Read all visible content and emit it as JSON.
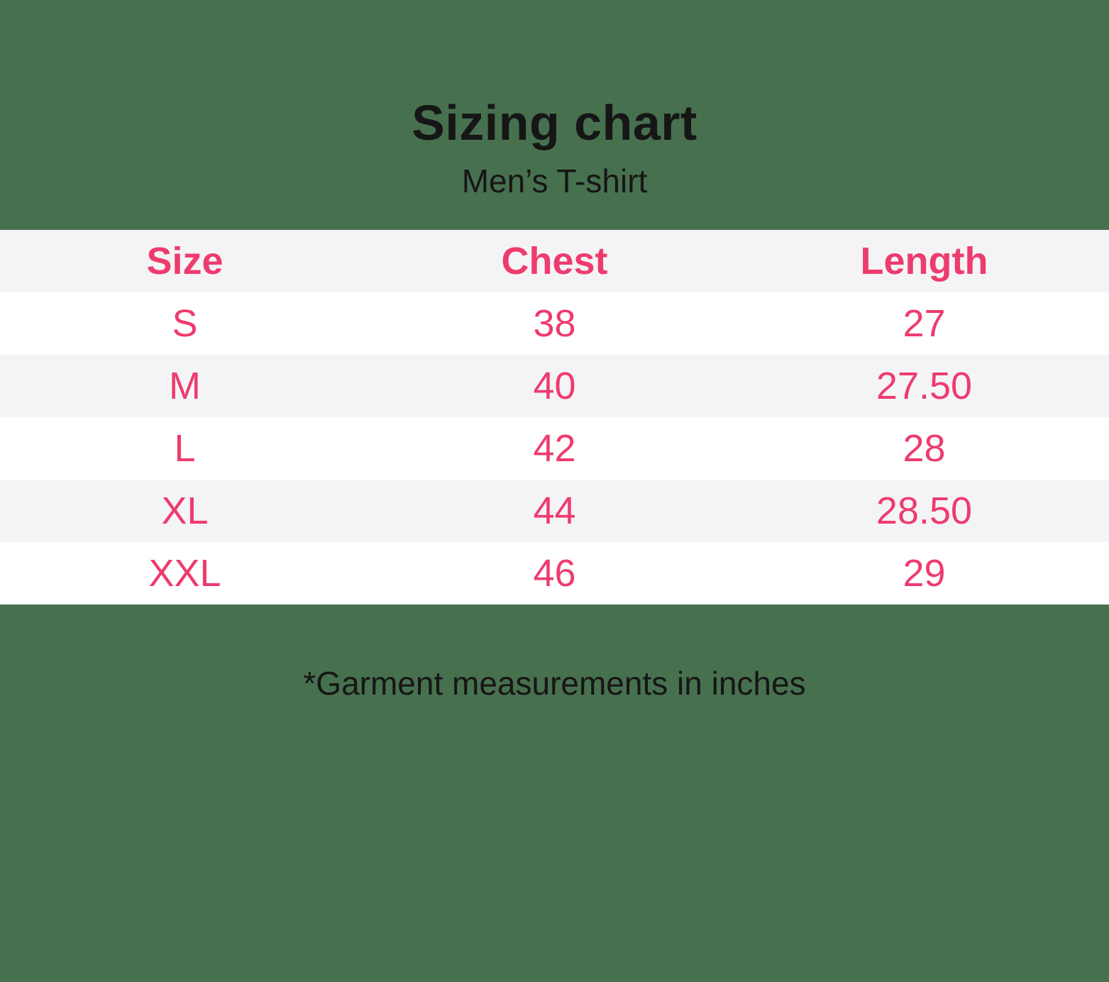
{
  "title": "Sizing chart",
  "subtitle": "Men’s T-shirt",
  "footnote": "*Garment measurements in inches",
  "colors": {
    "background_green": "#47704f",
    "accent_pink": "#ee3b6e",
    "stripe_gray": "#f4f4f6",
    "row_white": "#ffffff",
    "text_black": "#161616"
  },
  "table": {
    "headers": [
      "Size",
      "Chest",
      "Length"
    ],
    "rows": [
      [
        "S",
        "38",
        "27"
      ],
      [
        "M",
        "40",
        "27.50"
      ],
      [
        "L",
        "42",
        "28"
      ],
      [
        "XL",
        "44",
        "28.50"
      ],
      [
        "XXL",
        "46",
        "29"
      ]
    ]
  },
  "chart_data": {
    "type": "table",
    "title": "Sizing chart",
    "subtitle": "Men’s T-shirt",
    "units": "inches",
    "columns": [
      "Size",
      "Chest",
      "Length"
    ],
    "rows": [
      {
        "size": "S",
        "chest": 38,
        "length": 27
      },
      {
        "size": "M",
        "chest": 40,
        "length": 27.5
      },
      {
        "size": "L",
        "chest": 42,
        "length": 28
      },
      {
        "size": "XL",
        "chest": 44,
        "length": 28.5
      },
      {
        "size": "XXL",
        "chest": 46,
        "length": 29
      }
    ],
    "note": "*Garment measurements in inches"
  }
}
